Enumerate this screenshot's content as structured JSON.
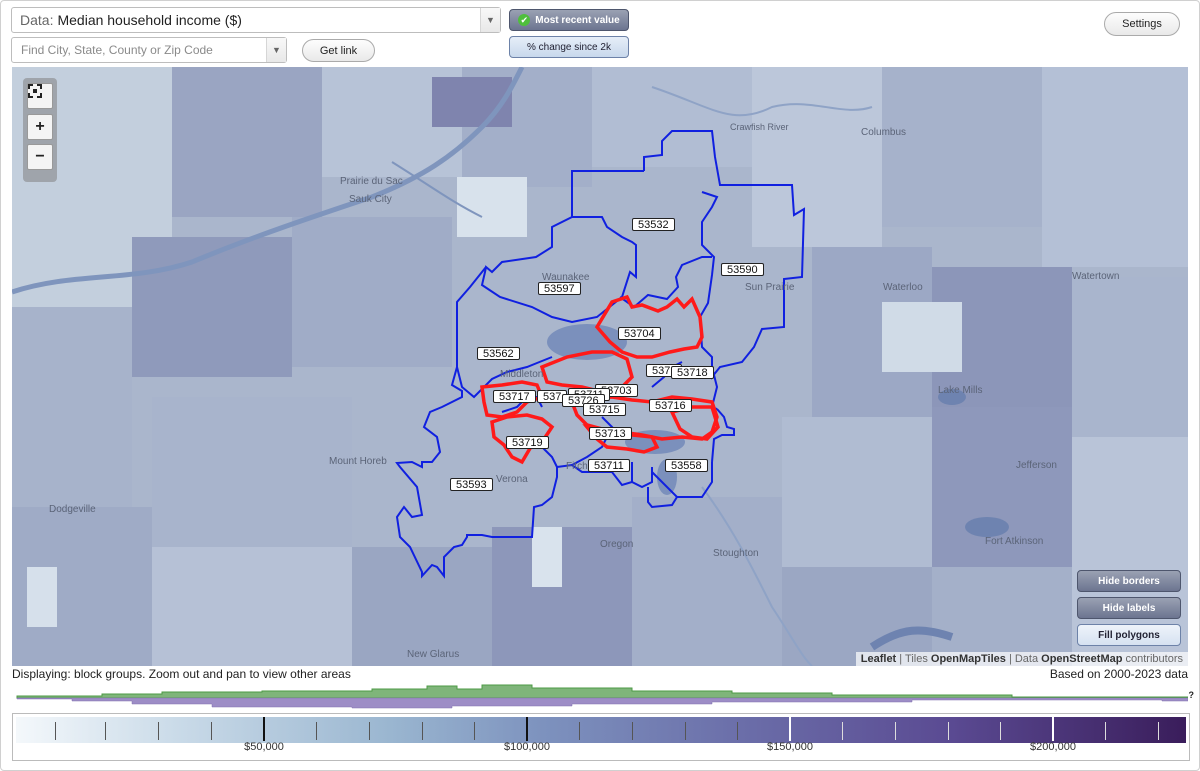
{
  "toolbar": {
    "data_prefix": "Data:",
    "data_value": "Median household income ($)",
    "search_placeholder": "Find City, State, County or Zip Code",
    "get_link": "Get link",
    "mode_recent": "Most recent value",
    "mode_change": "% change since 2k",
    "settings": "Settings"
  },
  "map": {
    "zoom_fit_icon": "fullscreen-icon",
    "zoom_in": "+",
    "zoom_out": "−",
    "buttons": {
      "hide_borders": "Hide borders",
      "hide_labels": "Hide labels",
      "fill_polygons": "Fill polygons"
    },
    "attribution": {
      "leaflet": "Leaflet",
      "tiles_prefix": "| Tiles",
      "tiles": "OpenMapTiles",
      "data_prefix": "| Data",
      "data": "OpenStreetMap",
      "suffix": "contributors"
    },
    "places": {
      "prairie_du_sac": "Prairie du Sac",
      "sauk_city": "Sauk City",
      "columbus": "Columbus",
      "waunakee": "Waunakee",
      "sun_prairie": "Sun Prairie",
      "waterloo": "Waterloo",
      "watertown": "Watertown",
      "middleton": "Middleton",
      "lake_mills": "Lake Mills",
      "mount_horeb": "Mount Horeb",
      "verona": "Verona",
      "fitchburg": "Fitchburg",
      "jefferson": "Jefferson",
      "dodgeville": "Dodgeville",
      "oregon": "Oregon",
      "stoughton": "Stoughton",
      "fort_atkinson": "Fort Atkinson",
      "new_glarus": "New Glarus",
      "crawfish": "Crawfish River"
    },
    "zips": {
      "z53532": "53532",
      "z53590": "53590",
      "z53597": "53597",
      "z53704": "53704",
      "z53562": "53562",
      "z5371x": "5371",
      "z53718": "53718",
      "z53717": "53717",
      "z537a": "537",
      "z53703": "53703",
      "z53726": "53726",
      "z53715": "53715",
      "z53716": "53716",
      "z53713": "53713",
      "z53719": "53719",
      "z53711": "53711",
      "z53558": "53558",
      "z53593": "53593",
      "z537b": "53711"
    },
    "colors": {
      "zip_border": "#1020e0",
      "highlight": "#ff1a1a"
    }
  },
  "footer": {
    "displaying": "Displaying: block groups. Zoom out and pan to view other areas",
    "based_on": "Based on 2000-2023 data",
    "help": "?"
  },
  "legend": {
    "labels": [
      "$50,000",
      "$100,000",
      "$150,000",
      "$200,000"
    ],
    "label_values": [
      50000,
      100000,
      150000,
      200000
    ],
    "colors": {
      "low": "#f4f8fb",
      "high": "#3a1d5b"
    }
  }
}
